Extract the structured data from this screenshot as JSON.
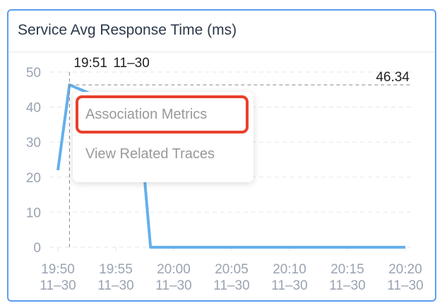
{
  "panel": {
    "title": "Service Avg Response Time (ms)"
  },
  "chart_data": {
    "type": "line",
    "title": "Service Avg Response Time (ms)",
    "y_ticks": [
      "0",
      "10",
      "20",
      "30",
      "40",
      "50"
    ],
    "ylim": [
      0,
      50
    ],
    "x_ticks": [
      {
        "time": "19:50",
        "date": "11–30"
      },
      {
        "time": "19:55",
        "date": "11–30"
      },
      {
        "time": "20:00",
        "date": "11–30"
      },
      {
        "time": "20:05",
        "date": "11–30"
      },
      {
        "time": "20:10",
        "date": "11–30"
      },
      {
        "time": "20:15",
        "date": "11–30"
      },
      {
        "time": "20:20",
        "date": "11–30"
      }
    ],
    "x_minutes_from_1950": [
      0,
      1,
      7,
      8,
      30
    ],
    "values": [
      22,
      46.34,
      38,
      0,
      0
    ],
    "series_color": "#64b0ec",
    "grid": true
  },
  "crosshair": {
    "value": "46.34",
    "time": "19:51",
    "date": "11–30",
    "minute": 1
  },
  "context_menu": {
    "items": [
      "Association Metrics",
      "View Related Traces"
    ],
    "highlight_color": "#e8412c"
  }
}
